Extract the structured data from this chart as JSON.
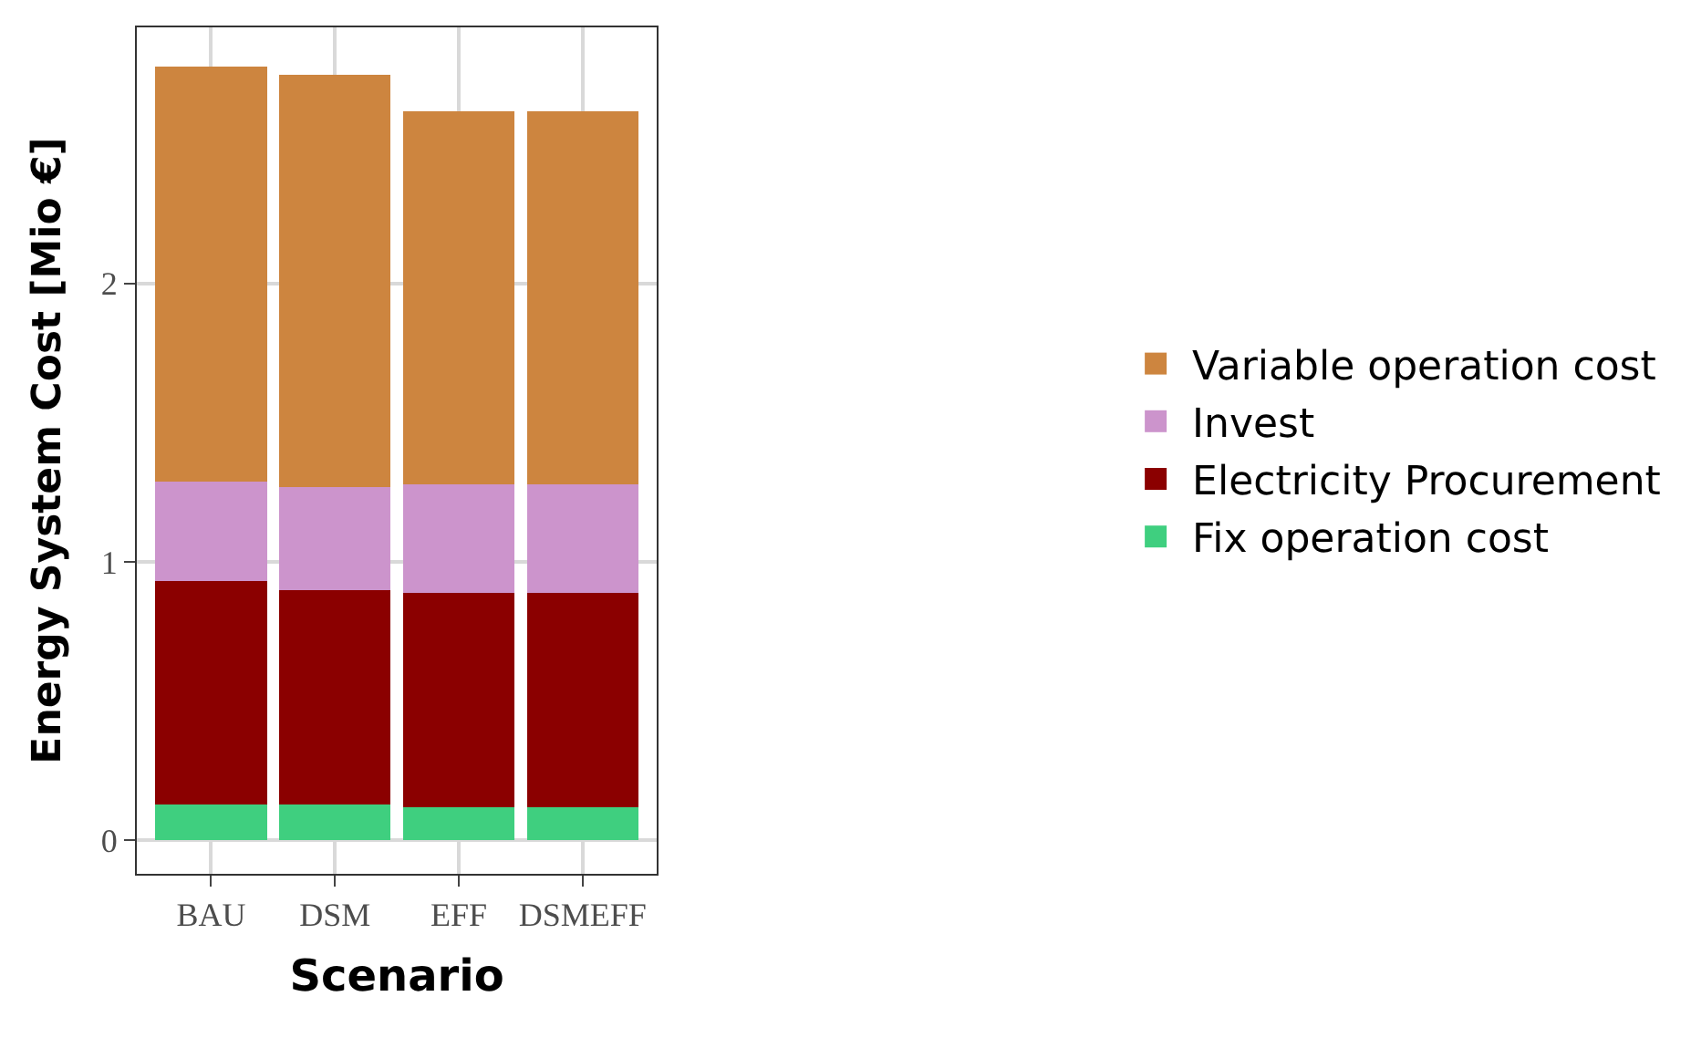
{
  "chart_data": {
    "type": "bar",
    "stacked": true,
    "xlabel": "Scenario",
    "ylabel": "Energy System Cost [Mio €]",
    "categories": [
      "BAU",
      "DSM",
      "EFF",
      "DSMEFF"
    ],
    "series": [
      {
        "name": "Fix operation cost",
        "color": "#3fcf7f",
        "values": [
          0.13,
          0.13,
          0.12,
          0.12
        ]
      },
      {
        "name": "Electricity Procurement",
        "color": "#8b0000",
        "values": [
          0.8,
          0.77,
          0.77,
          0.77
        ]
      },
      {
        "name": "Invest",
        "color": "#cc94cc",
        "values": [
          0.36,
          0.37,
          0.39,
          0.39
        ]
      },
      {
        "name": "Variable operation cost",
        "color": "#cd853f",
        "values": [
          1.49,
          1.48,
          1.34,
          1.34
        ]
      }
    ],
    "ylim": [
      -0.12,
      2.92
    ],
    "yticks": [
      0,
      1,
      2
    ],
    "grid": true,
    "legend": "right"
  }
}
